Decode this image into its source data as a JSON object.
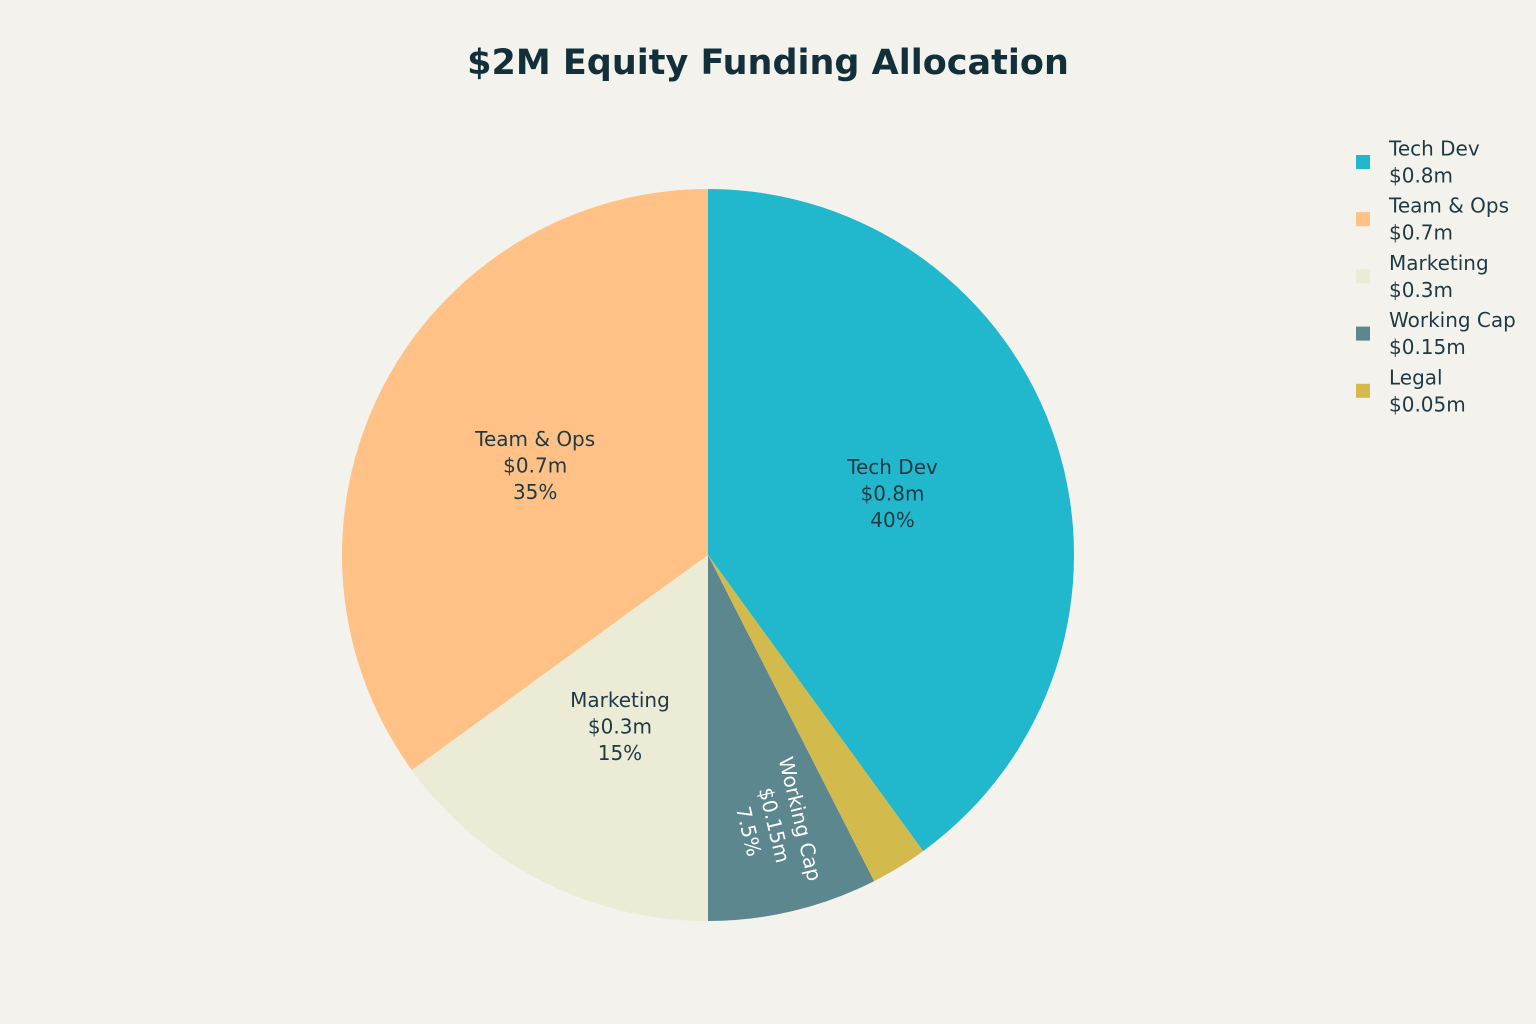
{
  "chart_data": {
    "type": "pie",
    "title": "$2M Equity Funding Allocation",
    "categories": [
      "Tech Dev",
      "Team & Ops",
      "Marketing",
      "Working Cap",
      "Legal"
    ],
    "values": [
      40,
      35,
      15,
      7.5,
      2.5
    ],
    "value_labels": [
      "40%",
      "35%",
      "15%",
      "7.5%",
      null
    ],
    "amount_labels": [
      "$0.8m",
      "$0.7m",
      "$0.3m",
      "$0.15m",
      "$0.05m"
    ],
    "colors": [
      "#21b7cc",
      "#ffc185",
      "#ecebd5",
      "#5d878f",
      "#d2ba4c"
    ],
    "legend": "top-right"
  }
}
